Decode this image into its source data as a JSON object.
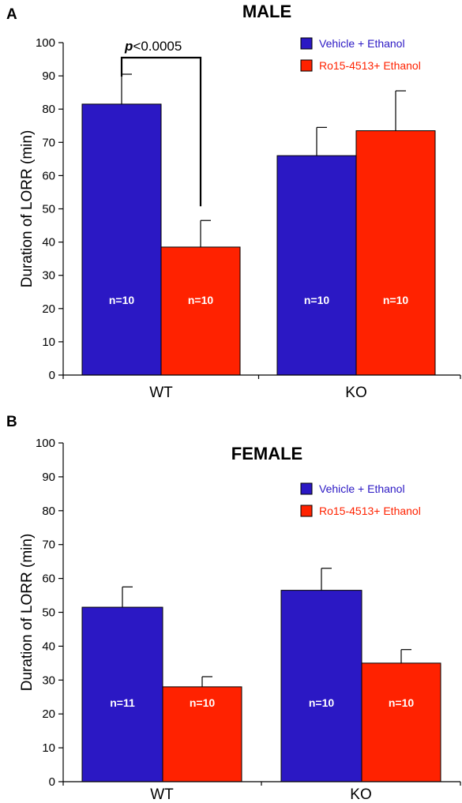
{
  "colors": {
    "vehicle": "#2b18c4",
    "ro15": "#ff2200",
    "axis": "#000000"
  },
  "chart_data": [
    {
      "type": "bar",
      "panel": "A",
      "title": "MALE",
      "ylabel": "Duration of LORR (min)",
      "xlabel": "",
      "ylim": [
        0,
        100
      ],
      "yticks": [
        0,
        10,
        20,
        30,
        40,
        50,
        60,
        70,
        80,
        90,
        100
      ],
      "grid": false,
      "legend_position": "top-right",
      "categories": [
        "WT",
        "KO"
      ],
      "series": [
        {
          "name": "Vehicle + Ethanol",
          "color": "#2b18c4",
          "values": [
            81.5,
            66
          ],
          "errors": [
            9,
            8.5
          ],
          "n_labels": [
            "n=10",
            "n=10"
          ]
        },
        {
          "name": "Ro15-4513+ Ethanol",
          "color": "#ff2200",
          "values": [
            38.5,
            73.5
          ],
          "errors": [
            8,
            12
          ],
          "n_labels": [
            "n=10",
            "n=10"
          ]
        }
      ],
      "annotation": {
        "prefix": "p",
        "text": "<0.0005"
      }
    },
    {
      "type": "bar",
      "panel": "B",
      "title": "FEMALE",
      "ylabel": "Duration of LORR (min)",
      "xlabel": "",
      "ylim": [
        0,
        100
      ],
      "yticks": [
        0,
        10,
        20,
        30,
        40,
        50,
        60,
        70,
        80,
        90,
        100
      ],
      "grid": false,
      "legend_position": "top-right",
      "categories": [
        "WT",
        "KO"
      ],
      "series": [
        {
          "name": "Vehicle + Ethanol",
          "color": "#2b18c4",
          "values": [
            51.5,
            56.5
          ],
          "errors": [
            6,
            6.5
          ],
          "n_labels": [
            "n=11",
            "n=10"
          ]
        },
        {
          "name": "Ro15-4513+ Ethanol",
          "color": "#ff2200",
          "values": [
            28,
            35
          ],
          "errors": [
            3,
            4
          ],
          "n_labels": [
            "n=10",
            "n=10"
          ]
        }
      ]
    }
  ]
}
